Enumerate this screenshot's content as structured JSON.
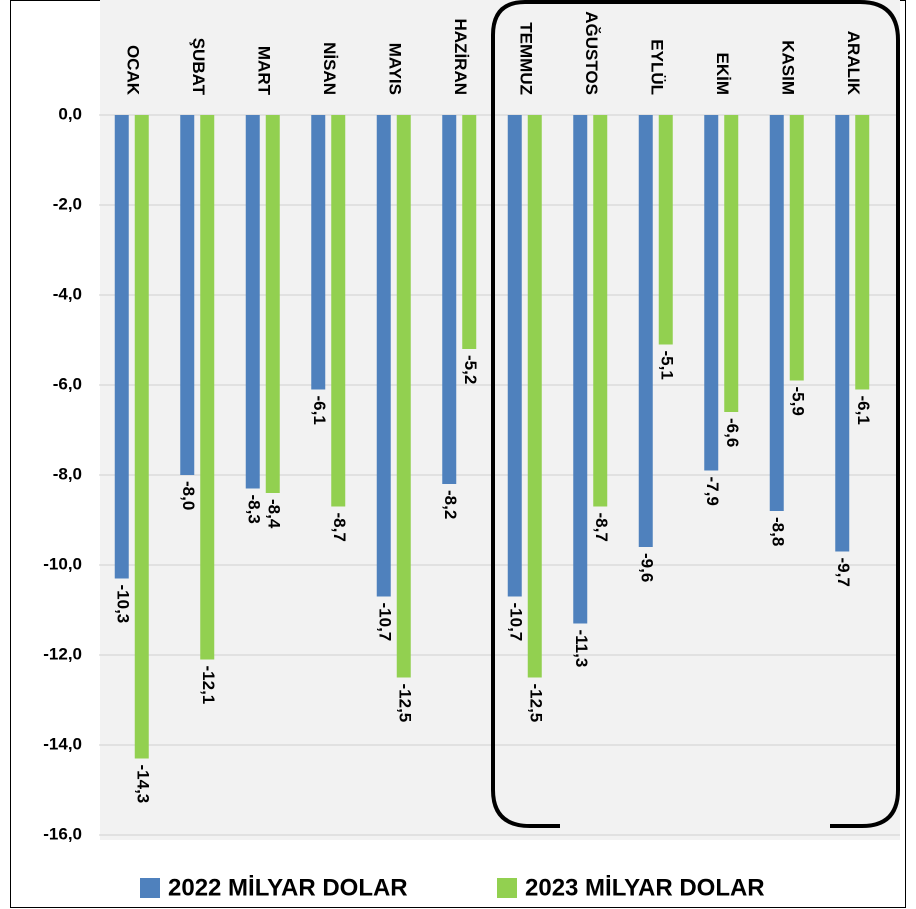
{
  "chart_data": {
    "type": "bar",
    "categories": [
      "OCAK",
      "ŞUBAT",
      "MART",
      "NİSAN",
      "MAYIS",
      "HAZİRAN",
      "TEMMUZ",
      "AĞUSTOS",
      "EYLÜL",
      "EKİM",
      "KASIM",
      "ARALIK"
    ],
    "series": [
      {
        "name": "2022 MİLYAR DOLAR",
        "color": "#4f81bd",
        "values": [
          -10.3,
          -8.0,
          -8.3,
          -6.1,
          -10.7,
          -8.2,
          -10.7,
          -11.3,
          -9.6,
          -7.9,
          -8.8,
          -9.7
        ],
        "value_labels": [
          "-10,3",
          "-8,0",
          "-8,3",
          "-6,1",
          "-10,7",
          "-8,2",
          "-10,7",
          "-11,3",
          "-9,6",
          "-7,9",
          "-8,8",
          "-9,7"
        ]
      },
      {
        "name": "2023 MİLYAR DOLAR",
        "color": "#92d050",
        "values": [
          -14.3,
          -12.1,
          -8.4,
          -8.7,
          -12.5,
          -5.2,
          -12.5,
          -8.7,
          -5.1,
          -6.6,
          -5.9,
          -6.1
        ],
        "value_labels": [
          "-14,3",
          "-12,1",
          "-8,4",
          "-8,7",
          "-12,5",
          "-5,2",
          "-12,5",
          "-8,7",
          "-5,1",
          "-6,6",
          "-5,9",
          "-6,1"
        ]
      }
    ],
    "ylim": [
      -16,
      0
    ],
    "yticks": [
      {
        "value": 0,
        "label": "0,0"
      },
      {
        "value": -2,
        "label": "-2,0"
      },
      {
        "value": -4,
        "label": "-4,0"
      },
      {
        "value": -6,
        "label": "-6,0"
      },
      {
        "value": -8,
        "label": "-8,0"
      },
      {
        "value": -10,
        "label": "-10,0"
      },
      {
        "value": -12,
        "label": "-12,0"
      },
      {
        "value": -14,
        "label": "-14,0"
      },
      {
        "value": -16,
        "label": "-16,0"
      }
    ],
    "grid": true
  }
}
